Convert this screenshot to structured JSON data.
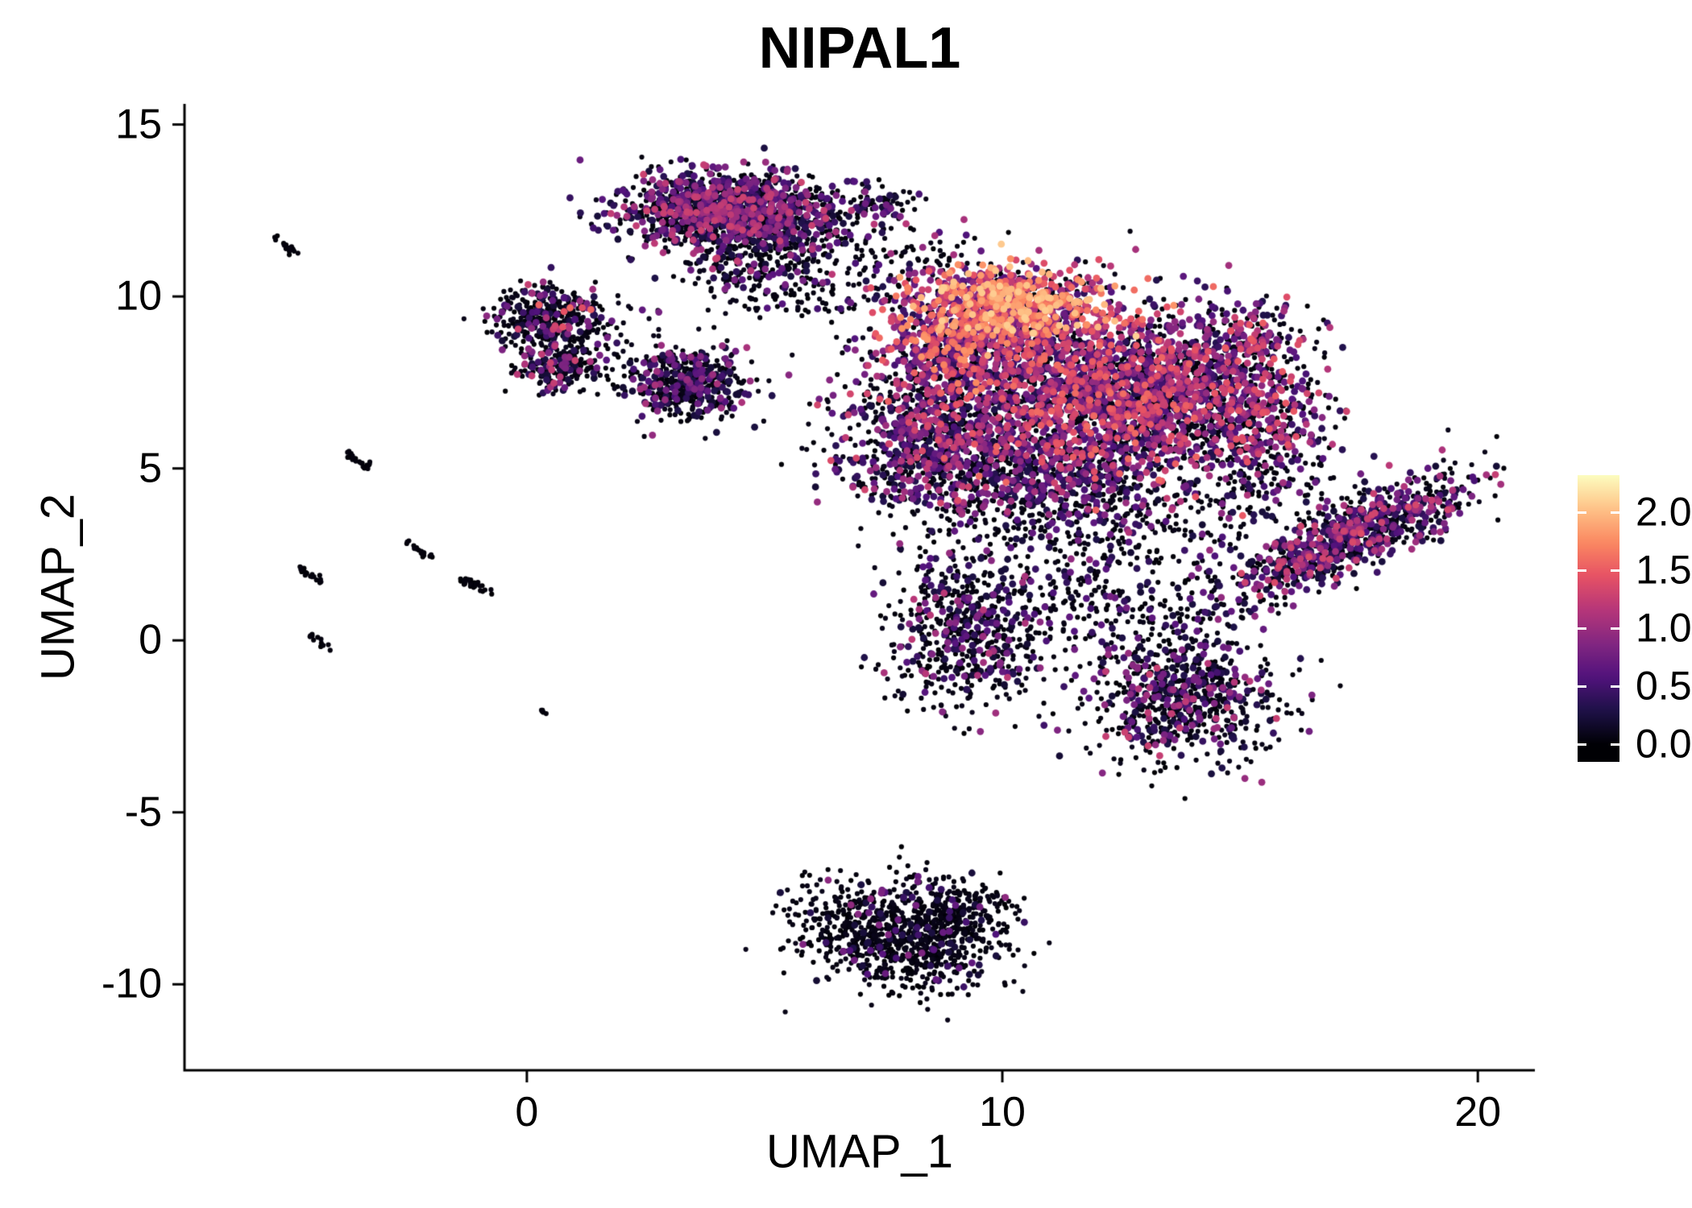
{
  "title": "NIPAL1",
  "chart_data": {
    "type": "scatter",
    "title": "NIPAL1",
    "xlabel": "UMAP_1",
    "ylabel": "UMAP_2",
    "xlim": [
      -7.2,
      21.2
    ],
    "ylim": [
      -12.5,
      15.6
    ],
    "x_ticks": [
      0,
      10,
      20
    ],
    "y_ticks": [
      15,
      10,
      5,
      0,
      -5,
      -10
    ],
    "grid": false,
    "legend": {
      "position": "right",
      "ticks": [
        2.0,
        1.5,
        1.0,
        0.5,
        0.0
      ],
      "labels": [
        "2.0",
        "1.5",
        "1.0",
        "0.5",
        "0.0"
      ],
      "bar_range": [
        -0.15,
        2.32
      ],
      "color_max": 2.32
    },
    "colormap": {
      "name": "magma",
      "stops": [
        "#000004",
        "#1D1147",
        "#51127C",
        "#822681",
        "#B63679",
        "#E65164",
        "#FB8861",
        "#FEC287",
        "#FCFDBF"
      ]
    },
    "point_radius_zero": 3.1,
    "point_radius_expr": 4.4,
    "seed": 42,
    "clusters": [
      {
        "name": "top-main",
        "cx": 4.3,
        "cy": 12.45,
        "sx": 1.15,
        "sy": 0.55,
        "rot": -4,
        "n": 1500,
        "p0": 0.55,
        "vmin": 0.2,
        "vmax": 1.3,
        "skew": 1.4
      },
      {
        "name": "top-tail",
        "cx": 5.0,
        "cy": 10.7,
        "sx": 0.9,
        "sy": 0.55,
        "rot": 0,
        "n": 240,
        "p0": 0.78,
        "vmin": 0.2,
        "vmax": 0.9,
        "skew": 1.2
      },
      {
        "name": "top-right-dots",
        "cx": 7.4,
        "cy": 12.7,
        "sx": 0.35,
        "sy": 0.3,
        "rot": 0,
        "n": 70,
        "p0": 0.6,
        "vmin": 0.2,
        "vmax": 0.9,
        "skew": 1
      },
      {
        "name": "connector-upper",
        "cx": 8.0,
        "cy": 11.0,
        "sx": 0.7,
        "sy": 0.5,
        "rot": 0,
        "n": 90,
        "p0": 0.7,
        "vmin": 0.2,
        "vmax": 1.2,
        "skew": 1
      },
      {
        "name": "left-upper",
        "cx": 0.35,
        "cy": 9.4,
        "sx": 0.55,
        "sy": 0.45,
        "rot": 0,
        "n": 330,
        "p0": 0.72,
        "vmin": 0.2,
        "vmax": 1.6,
        "skew": 2.2
      },
      {
        "name": "left-lower",
        "cx": 0.7,
        "cy": 7.95,
        "sx": 0.5,
        "sy": 0.35,
        "rot": 0,
        "n": 220,
        "p0": 0.7,
        "vmin": 0.2,
        "vmax": 1.3,
        "skew": 1.8
      },
      {
        "name": "left-connector",
        "cx": 1.7,
        "cy": 9.0,
        "sx": 0.5,
        "sy": 0.6,
        "rot": 0,
        "n": 50,
        "p0": 0.8,
        "vmin": 0.2,
        "vmax": 0.8,
        "skew": 1
      },
      {
        "name": "mid-small",
        "cx": 3.35,
        "cy": 7.5,
        "sx": 0.62,
        "sy": 0.5,
        "rot": 0,
        "n": 520,
        "p0": 0.68,
        "vmin": 0.2,
        "vmax": 1.1,
        "skew": 1.5
      },
      {
        "name": "mid-sparse-dots",
        "cx": 6.4,
        "cy": 9.9,
        "sx": 0.6,
        "sy": 0.35,
        "rot": 0,
        "n": 40,
        "p0": 0.85,
        "vmin": 0.2,
        "vmax": 0.7,
        "skew": 1
      },
      {
        "name": "hot-top",
        "cx": 10.2,
        "cy": 9.8,
        "sx": 1.0,
        "sy": 0.55,
        "rot": -8,
        "n": 850,
        "p0": 0.22,
        "vmin": 0.5,
        "vmax": 2.1,
        "skew": 0.9
      },
      {
        "name": "hot-left",
        "cx": 9.0,
        "cy": 8.7,
        "sx": 0.8,
        "sy": 0.6,
        "rot": 0,
        "n": 500,
        "p0": 0.3,
        "vmin": 0.4,
        "vmax": 1.8,
        "skew": 1.1
      },
      {
        "name": "main-mass",
        "cx": 11.6,
        "cy": 7.2,
        "sx": 1.6,
        "sy": 1.3,
        "rot": 0,
        "n": 2000,
        "p0": 0.42,
        "vmin": 0.3,
        "vmax": 1.6,
        "skew": 1.3
      },
      {
        "name": "mass-left-arm",
        "cx": 8.4,
        "cy": 6.1,
        "sx": 1.0,
        "sy": 1.1,
        "rot": 0,
        "n": 800,
        "p0": 0.52,
        "vmin": 0.2,
        "vmax": 1.4,
        "skew": 1.4
      },
      {
        "name": "mass-right",
        "cx": 13.6,
        "cy": 7.3,
        "sx": 1.1,
        "sy": 1.0,
        "rot": 0,
        "n": 800,
        "p0": 0.45,
        "vmin": 0.3,
        "vmax": 1.5,
        "skew": 1.3
      },
      {
        "name": "right-ext",
        "cx": 15.4,
        "cy": 6.6,
        "sx": 0.75,
        "sy": 0.85,
        "rot": 0,
        "n": 380,
        "p0": 0.5,
        "vmin": 0.3,
        "vmax": 1.5,
        "skew": 1.3
      },
      {
        "name": "right-upper-sparse",
        "cx": 15.0,
        "cy": 8.8,
        "sx": 0.6,
        "sy": 0.6,
        "rot": 0,
        "n": 160,
        "p0": 0.45,
        "vmin": 0.3,
        "vmax": 1.5,
        "skew": 1.2
      },
      {
        "name": "mass-bottom",
        "cx": 10.6,
        "cy": 4.7,
        "sx": 1.4,
        "sy": 0.8,
        "rot": 0,
        "n": 650,
        "p0": 0.62,
        "vmin": 0.2,
        "vmax": 1.2,
        "skew": 1.4
      },
      {
        "name": "sparse-mid",
        "cx": 12.3,
        "cy": 3.4,
        "sx": 1.8,
        "sy": 0.9,
        "rot": 0,
        "n": 280,
        "p0": 0.76,
        "vmin": 0.2,
        "vmax": 1.0,
        "skew": 1.4
      },
      {
        "name": "flipper",
        "cx": 17.3,
        "cy": 3.0,
        "sx": 1.5,
        "sy": 0.45,
        "rot": 33,
        "n": 950,
        "p0": 0.55,
        "vmin": 0.2,
        "vmax": 1.4,
        "skew": 1.5
      },
      {
        "name": "flipper-sparse",
        "cx": 15.4,
        "cy": 4.6,
        "sx": 0.7,
        "sy": 0.6,
        "rot": 0,
        "n": 120,
        "p0": 0.68,
        "vmin": 0.2,
        "vmax": 1.1,
        "skew": 1.3
      },
      {
        "name": "lower-mid",
        "cx": 9.3,
        "cy": 0.2,
        "sx": 0.85,
        "sy": 1.2,
        "rot": 0,
        "n": 620,
        "p0": 0.72,
        "vmin": 0.2,
        "vmax": 1.2,
        "skew": 1.6
      },
      {
        "name": "bridge",
        "cx": 11.8,
        "cy": 1.2,
        "sx": 1.3,
        "sy": 0.8,
        "rot": 0,
        "n": 240,
        "p0": 0.8,
        "vmin": 0.2,
        "vmax": 0.8,
        "skew": 1.3
      },
      {
        "name": "lower-right",
        "cx": 13.8,
        "cy": -1.7,
        "sx": 1.0,
        "sy": 0.95,
        "rot": 20,
        "n": 760,
        "p0": 0.68,
        "vmin": 0.2,
        "vmax": 1.3,
        "skew": 1.6
      },
      {
        "name": "bottom",
        "cx": 7.9,
        "cy": -8.5,
        "sx": 1.1,
        "sy": 0.8,
        "rot": -15,
        "n": 950,
        "p0": 0.9,
        "vmin": 0.2,
        "vmax": 1.0,
        "skew": 1.6
      },
      {
        "name": "bottom-tail",
        "cx": 9.2,
        "cy": -7.8,
        "sx": 0.5,
        "sy": 0.4,
        "rot": 0,
        "n": 120,
        "p0": 0.92,
        "vmin": 0.2,
        "vmax": 0.8,
        "skew": 1.5
      }
    ],
    "streaks": [
      {
        "x1": -5.3,
        "y1": 11.7,
        "x2": -4.9,
        "y2": 11.3,
        "n": 16
      },
      {
        "x1": -3.9,
        "y1": 5.55,
        "x2": -3.3,
        "y2": 5.0,
        "n": 24
      },
      {
        "x1": -2.6,
        "y1": 2.85,
        "x2": -2.0,
        "y2": 2.4,
        "n": 20
      },
      {
        "x1": -4.8,
        "y1": 2.1,
        "x2": -4.3,
        "y2": 1.7,
        "n": 18
      },
      {
        "x1": -1.4,
        "y1": 1.8,
        "x2": -0.7,
        "y2": 1.4,
        "n": 26
      },
      {
        "x1": -4.55,
        "y1": 0.1,
        "x2": -4.2,
        "y2": -0.25,
        "n": 12
      },
      {
        "x1": 0.25,
        "y1": -2.0,
        "x2": 0.45,
        "y2": -2.2,
        "n": 5
      }
    ]
  }
}
